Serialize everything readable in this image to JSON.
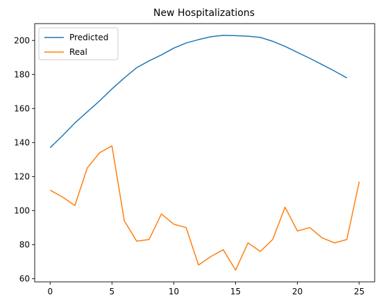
{
  "chart_data": {
    "type": "line",
    "title": "New Hospitalizations",
    "xlabel": "",
    "ylabel": "",
    "xlim": [
      -1.25,
      26.25
    ],
    "ylim": [
      58.1,
      209.9
    ],
    "xticks": [
      0,
      5,
      10,
      15,
      20,
      25
    ],
    "yticks": [
      60,
      80,
      100,
      120,
      140,
      160,
      180,
      200
    ],
    "grid": false,
    "legend_position": "top-left",
    "series": [
      {
        "name": "Predicted",
        "color": "#1f77b4",
        "x": [
          0,
          1,
          2,
          3,
          4,
          5,
          6,
          7,
          8,
          9,
          10,
          11,
          12,
          13,
          14,
          15,
          16,
          17,
          18,
          19,
          20,
          21,
          22,
          23,
          24
        ],
        "values": [
          137,
          144,
          151.5,
          158,
          164.5,
          171.5,
          178,
          184,
          188,
          191.5,
          195.5,
          198.5,
          200.5,
          202.2,
          203,
          202.8,
          202.5,
          201.8,
          199.5,
          196.5,
          193,
          189.5,
          185.8,
          182,
          178
        ]
      },
      {
        "name": "Real",
        "color": "#ff7f0e",
        "x": [
          0,
          1,
          2,
          3,
          4,
          5,
          6,
          7,
          8,
          9,
          10,
          11,
          12,
          13,
          14,
          15,
          16,
          17,
          18,
          19,
          20,
          21,
          22,
          23,
          24,
          25
        ],
        "values": [
          112,
          108,
          103,
          125,
          134,
          138,
          94,
          82,
          83,
          98,
          92,
          90,
          68,
          73,
          77,
          65,
          81,
          76,
          83,
          102,
          88,
          90,
          84,
          81,
          83,
          117
        ]
      }
    ]
  }
}
